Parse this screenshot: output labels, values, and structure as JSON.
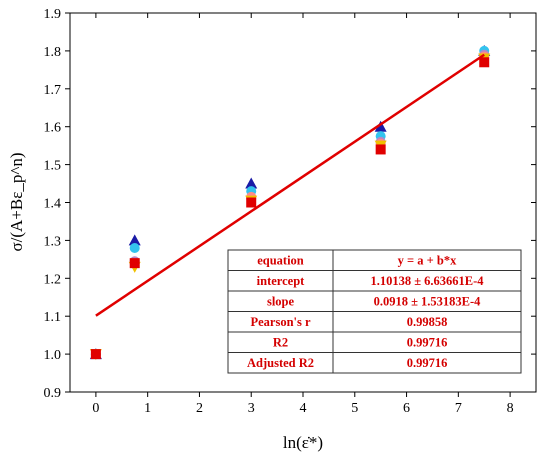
{
  "chart_data": {
    "type": "scatter",
    "xlabel": "ln(ε̇*)",
    "ylabel": "σ/(A+Bε_p^n)",
    "xlim": [
      -0.5,
      8.5
    ],
    "ylim": [
      0.9,
      1.9
    ],
    "xticks": [
      0,
      1,
      2,
      3,
      4,
      5,
      6,
      7,
      8
    ],
    "xtick_labels": [
      "0",
      "1",
      "2",
      "3",
      "4",
      "5",
      "6",
      "7",
      "8"
    ],
    "yticks": [
      0.9,
      1.0,
      1.1,
      1.2,
      1.3,
      1.4,
      1.5,
      1.6,
      1.7,
      1.8,
      1.9
    ],
    "ytick_labels": [
      "0.9",
      "1.0",
      "1.1",
      "1.2",
      "1.3",
      "1.4",
      "1.5",
      "1.6",
      "1.7",
      "1.8",
      "1.9"
    ],
    "grid": false,
    "series": [
      {
        "marker": "triangle-up",
        "color": "#1a1aa6",
        "x": [
          0,
          0.75,
          3,
          5.5,
          7.5
        ],
        "y": [
          1.0,
          1.3,
          1.45,
          1.6,
          1.8
        ]
      },
      {
        "marker": "circle",
        "color": "#33c3ee",
        "x": [
          0,
          0.75,
          3,
          5.5,
          7.5
        ],
        "y": [
          1.0,
          1.28,
          1.43,
          1.575,
          1.8
        ]
      },
      {
        "marker": "circle",
        "color": "#b788c8",
        "x": [
          0,
          0.75,
          3,
          5.5,
          7.5
        ],
        "y": [
          1.0,
          1.245,
          1.41,
          1.56,
          1.79
        ]
      },
      {
        "marker": "circle",
        "color": "#ff8a8a",
        "x": [
          0,
          0.75,
          3,
          5.5,
          7.5
        ],
        "y": [
          1.0,
          1.24,
          1.415,
          1.555,
          1.785
        ]
      },
      {
        "marker": "triangle-down",
        "color": "#f0c000",
        "x": [
          0,
          0.75,
          3,
          5.5,
          7.5
        ],
        "y": [
          1.0,
          1.23,
          1.405,
          1.55,
          1.78
        ]
      },
      {
        "marker": "square",
        "color": "#e00000",
        "x": [
          0,
          0.75,
          3,
          5.5,
          7.5
        ],
        "y": [
          1.0,
          1.24,
          1.4,
          1.54,
          1.77
        ]
      }
    ],
    "fit": {
      "type": "line",
      "color": "#e00000",
      "intercept": 1.10138,
      "slope": 0.0918,
      "x_range": [
        0,
        7.5
      ]
    },
    "fit_table": {
      "position": "bottom-right",
      "rows": [
        [
          "equation",
          "y = a + b*x"
        ],
        [
          "intercept",
          "1.10138 ± 6.63661E-4"
        ],
        [
          "slope",
          "0.0918 ± 1.53183E-4"
        ],
        [
          "Pearson's r",
          "0.99858"
        ],
        [
          "R2",
          "0.99716"
        ],
        [
          "Adjusted R2",
          "0.99716"
        ]
      ]
    }
  }
}
